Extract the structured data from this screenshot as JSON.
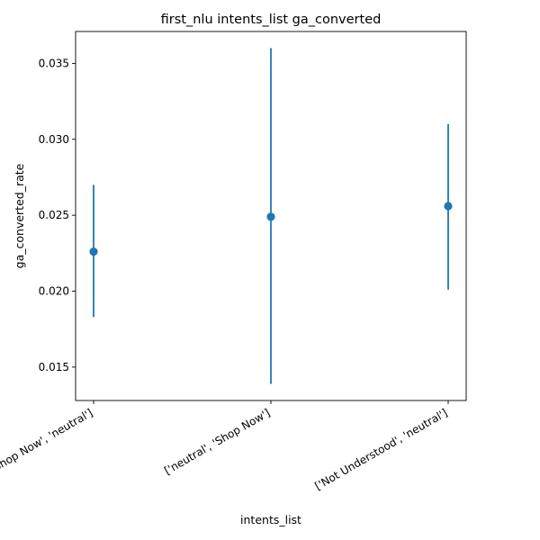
{
  "chart_data": {
    "type": "scatter",
    "title": "first_nlu intents_list ga_converted",
    "xlabel": "intents_list",
    "ylabel": "ga_converted_rate",
    "categories": [
      "['Shop Now', 'neutral']",
      "['neutral', 'Shop Now']",
      "['Not Understood', 'neutral']"
    ],
    "series": [
      {
        "values": [
          0.0226,
          0.0249,
          0.0256
        ],
        "lower": [
          0.0183,
          0.0139,
          0.0201
        ],
        "upper": [
          0.027,
          0.036,
          0.031
        ],
        "color": "#1f77b4"
      }
    ],
    "ylim": [
      0.0128,
      0.0371
    ],
    "yticks": [
      0.015,
      0.02,
      0.025,
      0.03,
      0.035
    ],
    "ytick_labels": [
      "0.015",
      "0.020",
      "0.025",
      "0.030",
      "0.035"
    ],
    "grid": false,
    "legend": "none"
  }
}
